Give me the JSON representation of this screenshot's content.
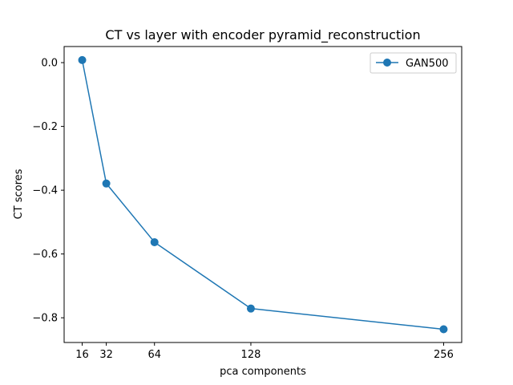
{
  "chart_data": {
    "type": "line",
    "title": "CT vs layer with encoder pyramid_reconstruction",
    "xlabel": "pca components",
    "ylabel": "CT scores",
    "x": [
      16,
      32,
      64,
      128,
      256
    ],
    "x_ticks": [
      16,
      32,
      64,
      128,
      256
    ],
    "y_ticks": [
      0.0,
      -0.2,
      -0.4,
      -0.6,
      -0.8
    ],
    "y_tick_labels": [
      "0.0",
      "−0.2",
      "−0.4",
      "−0.6",
      "−0.8"
    ],
    "xlim": [
      4,
      268
    ],
    "ylim": [
      -0.8775,
      0.0505
    ],
    "series": [
      {
        "name": "GAN500",
        "values": [
          0.008,
          -0.379,
          -0.563,
          -0.771,
          -0.836
        ],
        "color": "#1f77b4",
        "marker": "circle"
      }
    ],
    "legend_position": "top-right",
    "grid": false
  }
}
